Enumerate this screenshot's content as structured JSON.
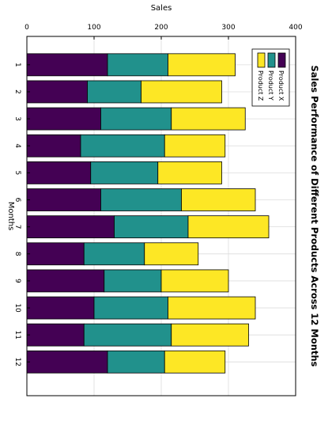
{
  "chart_data": {
    "type": "bar",
    "orientation": "stacked",
    "title": "Sales Performance of Different Products Across 12 Months",
    "xlabel": "Months",
    "ylabel": "Sales",
    "categories": [
      "1",
      "2",
      "3",
      "4",
      "5",
      "6",
      "7",
      "8",
      "9",
      "10",
      "11",
      "12"
    ],
    "ylim": [
      0,
      400
    ],
    "yticks": [
      0,
      100,
      200,
      300,
      400
    ],
    "grid": true,
    "legend_position": "upper-left",
    "series": [
      {
        "name": "Product X",
        "color": "#440154",
        "values": [
          120,
          90,
          110,
          80,
          95,
          110,
          130,
          85,
          115,
          100,
          85,
          120
        ]
      },
      {
        "name": "Product Y",
        "color": "#21918c",
        "values": [
          90,
          80,
          105,
          125,
          100,
          120,
          110,
          90,
          85,
          110,
          130,
          85
        ]
      },
      {
        "name": "Product Z",
        "color": "#fde725",
        "values": [
          100,
          120,
          110,
          90,
          95,
          110,
          120,
          80,
          100,
          130,
          115,
          90
        ]
      }
    ]
  }
}
